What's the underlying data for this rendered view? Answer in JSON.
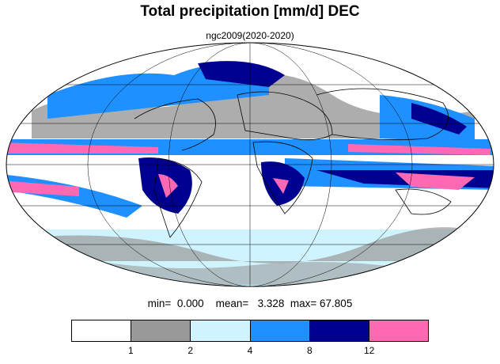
{
  "title": "Total precipitation [mm/d] DEC",
  "subtitle": "ngc2009(2020-2020)",
  "stats": {
    "min_label": "min=",
    "min": "0.000",
    "mean_label": "mean=",
    "mean": "3.328",
    "max_label": "max=",
    "max": "67.805"
  },
  "legend": {
    "ticks": [
      "1",
      "2",
      "4",
      "8",
      "12"
    ],
    "colors": [
      "#ffffff",
      "#999999",
      "#d0f4ff",
      "#1e90ff",
      "#000090",
      "#ff69b4"
    ]
  },
  "colors": {
    "land_outline": "#000000",
    "grid": "#000000"
  }
}
